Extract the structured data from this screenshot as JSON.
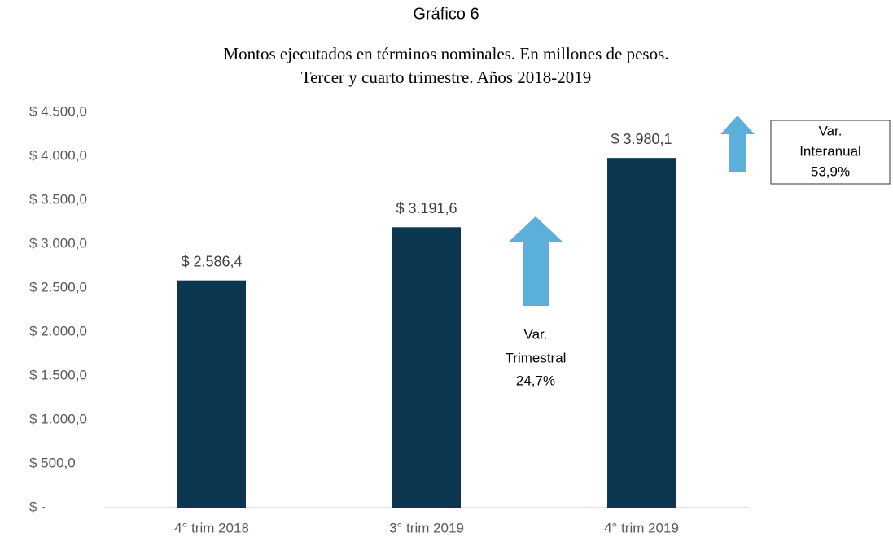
{
  "chart_data": {
    "type": "bar",
    "title": "Gráfico 6",
    "subtitle": [
      "Montos ejecutados en términos nominales. En millones de pesos.",
      "Tercer y cuarto trimestre. Años 2018-2019"
    ],
    "categories": [
      "4° trim 2018",
      "3° trim 2019",
      "4° trim 2019"
    ],
    "values": [
      2586.4,
      3191.6,
      3980.1
    ],
    "value_labels": [
      "$ 2.586,4",
      "$ 3.191,6",
      "$ 3.980,1"
    ],
    "color": "#0b3750",
    "ylim": [
      0,
      4500
    ],
    "yticks": [
      {
        "value": 0,
        "label": "$ -"
      },
      {
        "value": 500,
        "label": "$ 500,0"
      },
      {
        "value": 1000,
        "label": "$ 1.000,0"
      },
      {
        "value": 1500,
        "label": "$ 1.500,0"
      },
      {
        "value": 2000,
        "label": "$ 2.000,0"
      },
      {
        "value": 2500,
        "label": "$ 2.500,0"
      },
      {
        "value": 3000,
        "label": "$ 3.000,0"
      },
      {
        "value": 3500,
        "label": "$ 3.500,0"
      },
      {
        "value": 4000,
        "label": "$ 4.000,0"
      },
      {
        "value": 4500,
        "label": "$ 4.500,0"
      }
    ],
    "grid": false,
    "annotations": [
      {
        "lines": [
          "Var.",
          "Trimestral",
          "24,7%"
        ]
      },
      {
        "lines": [
          "Var.",
          "Interanual",
          "53,9%"
        ]
      }
    ]
  }
}
